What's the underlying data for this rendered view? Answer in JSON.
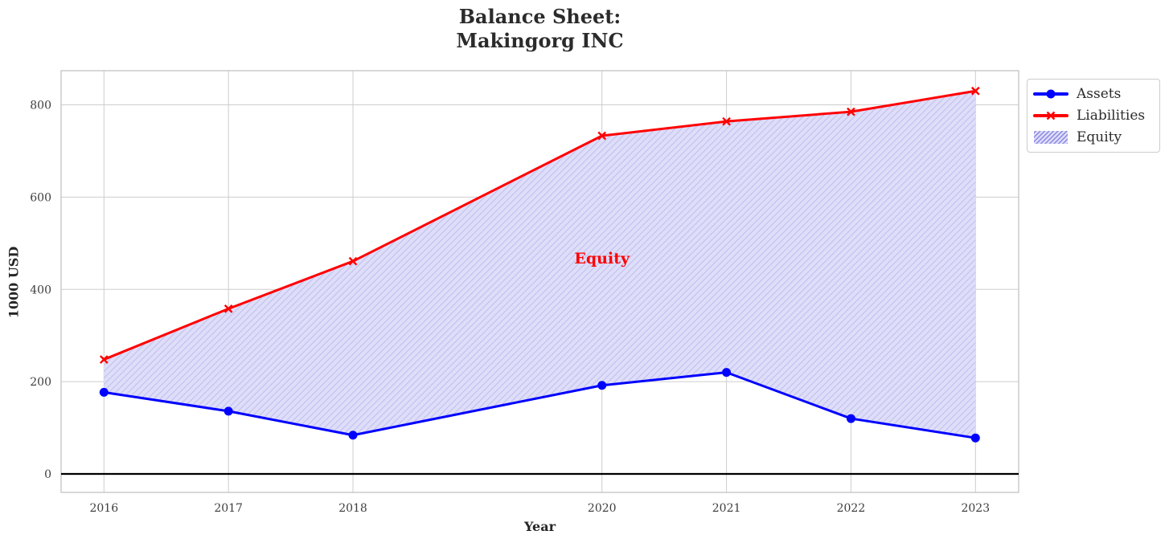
{
  "title": "Balance Sheet:\nMakingorg INC",
  "chart_data": {
    "type": "line",
    "title": "Balance Sheet: Makingorg INC",
    "xlabel": "Year",
    "ylabel": "1000 USD",
    "x": [
      2016,
      2017,
      2018,
      2020,
      2021,
      2022,
      2023
    ],
    "xticklabels": [
      "2016",
      "2017",
      "2018",
      "2020",
      "2021",
      "2022",
      "2023"
    ],
    "yticks": [
      0,
      200,
      400,
      600,
      800
    ],
    "yticklabels": [
      "0",
      "200",
      "400",
      "600",
      "800"
    ],
    "ylim": [
      -40,
      874
    ],
    "grid": true,
    "zero_line": true,
    "series": [
      {
        "name": "Assets",
        "color": "#0000ff",
        "marker": "circle",
        "linewidth": 3,
        "values": [
          177,
          136,
          84,
          192,
          220,
          120,
          78
        ]
      },
      {
        "name": "Liabilities",
        "color": "#ff0000",
        "marker": "x",
        "linewidth": 3,
        "values": [
          248,
          358,
          461,
          733,
          764,
          785,
          830
        ]
      }
    ],
    "fill_between": {
      "name": "Equity",
      "upper_series": "Liabilities",
      "lower_series": "Assets",
      "equity_values": [
        71,
        222,
        377,
        541,
        544,
        665,
        752
      ],
      "base_color": "#dfdef9",
      "hatch": "/",
      "hatch_color": "#c3c2f0"
    },
    "annotation": {
      "text": "Equity",
      "x": 2020,
      "y": 465,
      "color": "#ff0000"
    },
    "legend": {
      "position": "upper-right-outside",
      "items": [
        {
          "label": "Assets",
          "swatch": "blue-line-circle-marker"
        },
        {
          "label": "Liabilities",
          "swatch": "red-line-x-marker"
        },
        {
          "label": "Equity",
          "swatch": "hatched-patch"
        }
      ]
    }
  },
  "colors": {
    "assets_line": "#0000ff",
    "liabilities_line": "#ff0000",
    "equity_fill": "#dfdef9",
    "equity_hatch": "#c3c2f0",
    "legend_hatch": "#8a88e0",
    "gridline": "#cdcdcd",
    "spine": "#c4c4c4",
    "zero_line": "#000000",
    "tick_text": "#3d3d3d",
    "title_text": "#2b2b2b",
    "annotation_text": "#ff0000"
  }
}
